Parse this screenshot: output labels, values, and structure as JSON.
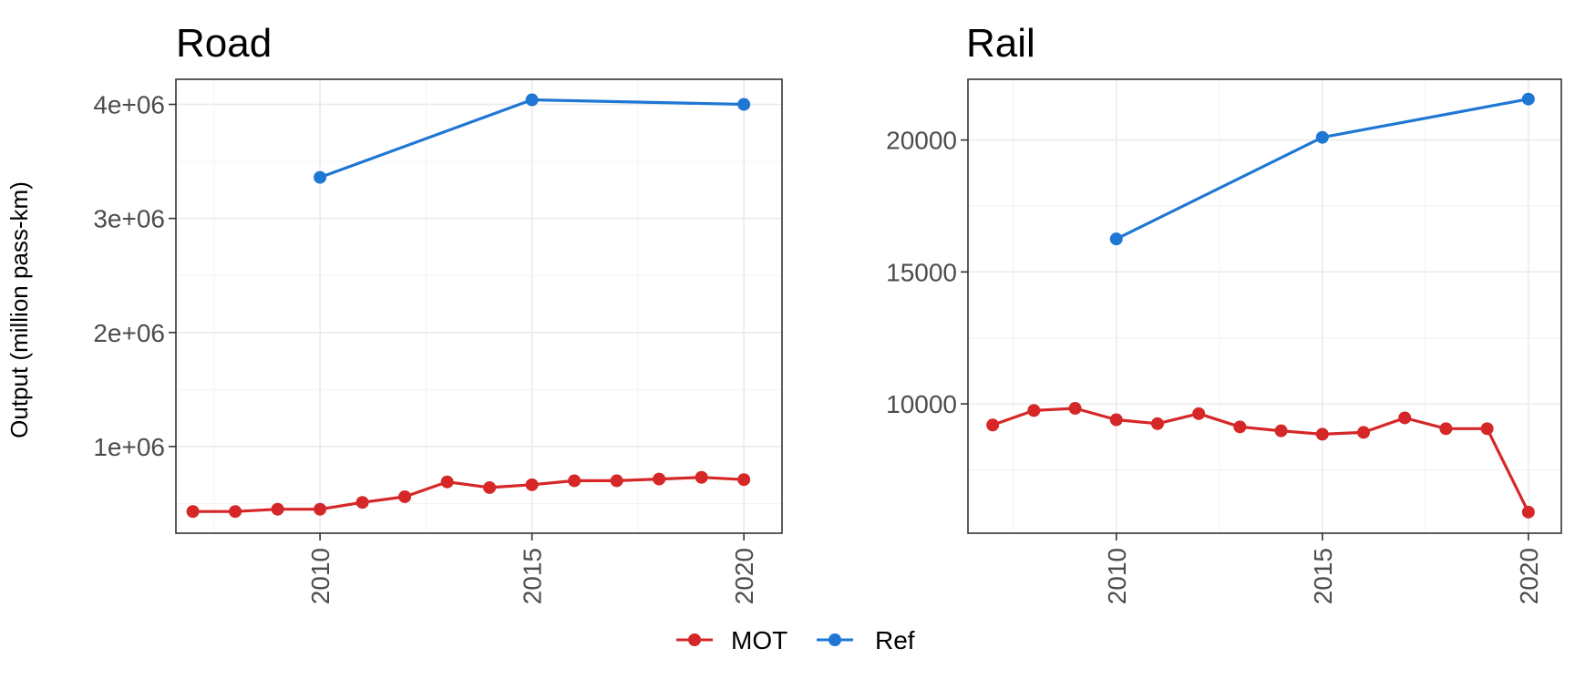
{
  "ylabel": "Output (million pass-km)",
  "legend": {
    "items": [
      {
        "label": "MOT",
        "color": "#D62728"
      },
      {
        "label": "Ref",
        "color": "#1F77D4"
      }
    ]
  },
  "chart_data": [
    {
      "type": "line",
      "title": "Road",
      "xlabel": "",
      "ylabel": "Output (million pass-km)",
      "xlim": [
        2006.6,
        2020.9
      ],
      "ylim": [
        240000,
        4220000
      ],
      "x_ticks": [
        2010,
        2015,
        2020
      ],
      "x_tick_labels": [
        "2010",
        "2015",
        "2020"
      ],
      "y_ticks": [
        1000000,
        2000000,
        3000000,
        4000000
      ],
      "y_tick_labels": [
        "1e+06",
        "2e+06",
        "3e+06",
        "4e+06"
      ],
      "grid": true,
      "series": [
        {
          "name": "MOT",
          "color": "#D62728",
          "x": [
            2007,
            2008,
            2009,
            2010,
            2011,
            2012,
            2013,
            2014,
            2015,
            2016,
            2017,
            2018,
            2019,
            2020
          ],
          "y": [
            430000,
            430000,
            450000,
            450000,
            510000,
            560000,
            690000,
            640000,
            665000,
            700000,
            700000,
            715000,
            730000,
            710000
          ]
        },
        {
          "name": "Ref",
          "color": "#1F77D4",
          "x": [
            2010,
            2015,
            2020
          ],
          "y": [
            3360000,
            4040000,
            4000000
          ]
        }
      ]
    },
    {
      "type": "line",
      "title": "Rail",
      "xlabel": "",
      "ylabel": "Output (million pass-km)",
      "xlim": [
        2006.4,
        2020.8
      ],
      "ylim": [
        5100,
        22300
      ],
      "x_ticks": [
        2010,
        2015,
        2020
      ],
      "x_tick_labels": [
        "2010",
        "2015",
        "2020"
      ],
      "y_ticks": [
        10000,
        15000,
        20000
      ],
      "y_tick_labels": [
        "10000",
        "15000",
        "20000"
      ],
      "grid": true,
      "series": [
        {
          "name": "MOT",
          "color": "#D62728",
          "x": [
            2007,
            2008,
            2009,
            2010,
            2011,
            2012,
            2013,
            2014,
            2015,
            2016,
            2017,
            2018,
            2019,
            2020
          ],
          "y": [
            9200,
            9750,
            9830,
            9400,
            9250,
            9630,
            9130,
            8980,
            8850,
            8920,
            9470,
            9060,
            9060,
            5900
          ]
        },
        {
          "name": "Ref",
          "color": "#1F77D4",
          "x": [
            2010,
            2015,
            2020
          ],
          "y": [
            16250,
            20100,
            21550
          ]
        }
      ]
    }
  ]
}
